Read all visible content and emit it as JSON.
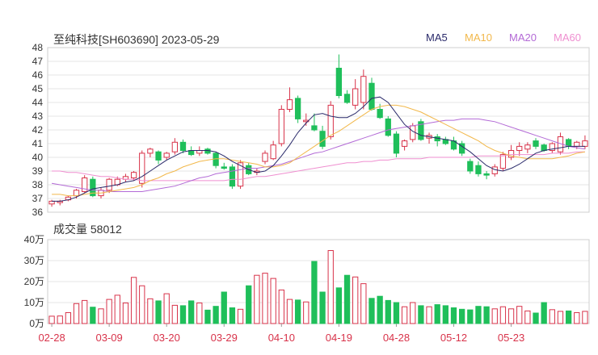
{
  "header": {
    "title": "至纯科技[SH603690] 2023-05-29"
  },
  "legend": [
    {
      "label": "MA5",
      "color": "#2b2b6b"
    },
    {
      "label": "MA10",
      "color": "#f2b84b"
    },
    {
      "label": "MA20",
      "color": "#b36ad6"
    },
    {
      "label": "MA60",
      "color": "#ef8fd0"
    }
  ],
  "volume_panel": {
    "title": "成交量",
    "value": "58012"
  },
  "colors": {
    "up": "#d8334a",
    "down": "#1fbf5a",
    "grid": "#e6e6e6",
    "axis": "#333333",
    "date": "#d8334a"
  },
  "chart_data": [
    {
      "type": "candlestick",
      "title": "至纯科技[SH603690] 2023-05-29",
      "ylim": [
        36,
        48
      ],
      "yticks": [
        "36",
        "37",
        "38",
        "39",
        "40",
        "41",
        "42",
        "43",
        "44",
        "45",
        "46",
        "47",
        "48"
      ],
      "dates": [
        "02-28",
        "03-09",
        "03-20",
        "03-29",
        "04-10",
        "04-19",
        "04-28",
        "05-12",
        "05-23"
      ],
      "date_index": [
        0,
        7,
        14,
        21,
        28,
        35,
        42,
        49,
        56
      ],
      "ohlc": [
        [
          36.6,
          36.9,
          36.4,
          36.8
        ],
        [
          36.7,
          36.9,
          36.5,
          36.8
        ],
        [
          36.9,
          37.2,
          36.8,
          37.1
        ],
        [
          37.2,
          37.7,
          37.0,
          37.6
        ],
        [
          37.5,
          38.7,
          37.4,
          38.5
        ],
        [
          38.4,
          38.6,
          37.1,
          37.2
        ],
        [
          37.2,
          37.8,
          37.0,
          37.6
        ],
        [
          37.6,
          38.5,
          37.4,
          38.4
        ],
        [
          38.0,
          38.6,
          37.9,
          38.4
        ],
        [
          38.4,
          38.8,
          38.2,
          38.6
        ],
        [
          38.5,
          39.0,
          38.3,
          38.9
        ],
        [
          38.1,
          40.5,
          37.8,
          40.3
        ],
        [
          40.3,
          40.7,
          40.0,
          40.6
        ],
        [
          40.4,
          40.5,
          39.5,
          39.8
        ],
        [
          40.0,
          40.4,
          39.8,
          40.3
        ],
        [
          40.4,
          41.4,
          40.2,
          41.1
        ],
        [
          41.1,
          41.3,
          40.3,
          40.5
        ],
        [
          40.5,
          40.8,
          40.1,
          40.2
        ],
        [
          40.3,
          40.8,
          40.1,
          40.5
        ],
        [
          40.6,
          40.7,
          40.2,
          40.3
        ],
        [
          40.3,
          40.4,
          39.2,
          39.4
        ],
        [
          39.3,
          39.6,
          39.1,
          39.2
        ],
        [
          39.3,
          39.5,
          37.7,
          37.9
        ],
        [
          37.9,
          39.8,
          37.7,
          39.6
        ],
        [
          39.4,
          39.6,
          38.7,
          38.8
        ],
        [
          38.9,
          39.2,
          38.7,
          39.0
        ],
        [
          39.7,
          40.5,
          39.5,
          40.3
        ],
        [
          39.9,
          41.2,
          39.8,
          40.9
        ],
        [
          41.0,
          43.8,
          40.8,
          43.5
        ],
        [
          43.5,
          45.1,
          43.3,
          44.2
        ],
        [
          44.3,
          44.5,
          42.5,
          42.8
        ],
        [
          42.6,
          43.2,
          42.3,
          42.7
        ],
        [
          42.3,
          43.2,
          41.9,
          42.0
        ],
        [
          41.9,
          42.3,
          40.6,
          40.8
        ],
        [
          41.5,
          44.1,
          41.3,
          43.8
        ],
        [
          46.5,
          47.5,
          44.3,
          44.5
        ],
        [
          44.6,
          44.9,
          43.9,
          44.0
        ],
        [
          43.8,
          45.7,
          43.5,
          45.0
        ],
        [
          44.0,
          46.4,
          43.5,
          45.9
        ],
        [
          45.4,
          45.8,
          43.4,
          43.5
        ],
        [
          43.5,
          43.9,
          42.8,
          42.9
        ],
        [
          42.8,
          43.0,
          41.5,
          41.6
        ],
        [
          41.7,
          41.9,
          40.0,
          40.3
        ],
        [
          40.8,
          41.3,
          40.5,
          41.2
        ],
        [
          41.3,
          42.5,
          41.1,
          42.3
        ],
        [
          42.6,
          42.8,
          41.2,
          41.3
        ],
        [
          41.4,
          41.8,
          41.0,
          41.6
        ],
        [
          41.5,
          41.7,
          40.8,
          41.2
        ],
        [
          41.3,
          41.5,
          40.9,
          41.0
        ],
        [
          41.2,
          41.5,
          40.5,
          40.6
        ],
        [
          41.0,
          41.2,
          40.1,
          40.3
        ],
        [
          39.7,
          39.9,
          38.8,
          39.0
        ],
        [
          39.4,
          39.7,
          38.6,
          38.8
        ],
        [
          38.8,
          39.0,
          38.4,
          38.7
        ],
        [
          38.8,
          39.5,
          38.6,
          39.3
        ],
        [
          39.2,
          40.4,
          39.0,
          40.2
        ],
        [
          40.0,
          40.9,
          39.8,
          40.5
        ],
        [
          40.5,
          41.1,
          40.1,
          40.8
        ],
        [
          40.6,
          41.1,
          40.3,
          40.9
        ],
        [
          41.2,
          41.4,
          40.6,
          40.8
        ],
        [
          40.9,
          41.0,
          40.4,
          40.5
        ],
        [
          40.5,
          41.1,
          40.3,
          41.0
        ],
        [
          40.4,
          41.8,
          40.2,
          41.5
        ],
        [
          41.3,
          41.4,
          40.6,
          40.8
        ],
        [
          40.8,
          41.2,
          40.6,
          41.1
        ],
        [
          40.8,
          41.6,
          40.6,
          41.2
        ]
      ],
      "ma5": [
        36.8,
        36.8,
        36.9,
        37.1,
        37.4,
        37.7,
        37.8,
        37.9,
        38.0,
        38.2,
        38.3,
        38.6,
        39.0,
        39.4,
        39.8,
        40.1,
        40.4,
        40.5,
        40.5,
        40.5,
        40.4,
        40.1,
        39.7,
        39.4,
        39.1,
        38.9,
        39.0,
        39.4,
        40.1,
        40.9,
        41.8,
        42.5,
        43.1,
        43.2,
        43.0,
        42.9,
        42.9,
        43.2,
        43.7,
        44.3,
        44.4,
        44.0,
        43.2,
        42.4,
        41.9,
        41.6,
        41.5,
        41.4,
        41.3,
        41.2,
        40.8,
        40.4,
        39.9,
        39.4,
        39.1,
        39.0,
        39.2,
        39.5,
        39.9,
        40.3,
        40.5,
        40.6,
        40.7,
        40.8,
        40.8,
        40.8
      ],
      "ma10": [
        37.3,
        37.3,
        37.2,
        37.2,
        37.3,
        37.4,
        37.4,
        37.5,
        37.6,
        37.7,
        37.8,
        38.0,
        38.3,
        38.5,
        38.8,
        39.0,
        39.3,
        39.5,
        39.7,
        39.8,
        39.9,
        39.9,
        39.8,
        39.7,
        39.6,
        39.5,
        39.3,
        39.3,
        39.4,
        39.6,
        40.0,
        40.4,
        40.8,
        41.2,
        41.6,
        41.9,
        42.3,
        42.7,
        43.1,
        43.5,
        43.7,
        43.8,
        43.8,
        43.7,
        43.5,
        43.3,
        43.0,
        42.7,
        42.4,
        42.1,
        41.8,
        41.5,
        41.2,
        40.8,
        40.5,
        40.3,
        40.1,
        40.0,
        39.9,
        39.9,
        39.9,
        39.9,
        40.0,
        40.1,
        40.3,
        40.4
      ],
      "ma20": [
        38.1,
        38.0,
        37.9,
        37.8,
        37.7,
        37.6,
        37.6,
        37.5,
        37.5,
        37.5,
        37.5,
        37.5,
        37.6,
        37.7,
        37.8,
        37.9,
        38.1,
        38.3,
        38.5,
        38.6,
        38.8,
        38.9,
        39.0,
        39.1,
        39.2,
        39.2,
        39.3,
        39.4,
        39.5,
        39.7,
        39.9,
        40.1,
        40.3,
        40.4,
        40.6,
        40.8,
        41.0,
        41.2,
        41.4,
        41.6,
        41.8,
        42.0,
        42.1,
        42.2,
        42.3,
        42.4,
        42.5,
        42.6,
        42.7,
        42.7,
        42.8,
        42.8,
        42.8,
        42.7,
        42.6,
        42.4,
        42.2,
        42.0,
        41.8,
        41.6,
        41.4,
        41.2,
        41.0,
        40.8,
        40.7,
        40.6
      ],
      "ma60": [
        39.0,
        39.0,
        38.9,
        38.9,
        38.8,
        38.7,
        38.6,
        38.6,
        38.5,
        38.4,
        38.4,
        38.3,
        38.3,
        38.3,
        38.3,
        38.3,
        38.3,
        38.3,
        38.3,
        38.3,
        38.3,
        38.3,
        38.4,
        38.4,
        38.5,
        38.6,
        38.6,
        38.7,
        38.8,
        38.9,
        39.0,
        39.1,
        39.2,
        39.3,
        39.4,
        39.5,
        39.6,
        39.6,
        39.7,
        39.7,
        39.8,
        39.8,
        39.9,
        39.9,
        39.9,
        39.9,
        40.0,
        40.0,
        40.0,
        40.0,
        40.0,
        40.0,
        40.1,
        40.1,
        40.1,
        40.1,
        40.2,
        40.2,
        40.2,
        40.2,
        40.2,
        40.3,
        40.3,
        40.3,
        40.4,
        40.4
      ]
    },
    {
      "type": "bar",
      "title": "成交量 58012",
      "ylim": [
        0,
        40
      ],
      "yticks": [
        "0万",
        "10万",
        "20万",
        "30万",
        "40万"
      ],
      "values": [
        3.5,
        3.6,
        5.2,
        9.5,
        11.0,
        7.8,
        7.0,
        11.5,
        13.5,
        9.8,
        22.0,
        18.0,
        11.8,
        10.8,
        14.2,
        8.7,
        8.5,
        10.8,
        9.8,
        6.4,
        8.2,
        15.0,
        7.5,
        6.8,
        18.0,
        23.0,
        24.0,
        21.5,
        16.0,
        11.5,
        11.2,
        10.3,
        29.6,
        15.0,
        34.8,
        17.0,
        23.0,
        22.2,
        19.0,
        12.0,
        13.0,
        11.0,
        10.0,
        8.0,
        10.0,
        8.5,
        8.0,
        9.0,
        8.5,
        7.5,
        6.8,
        6.5,
        8.2,
        8.0,
        7.0,
        8.0,
        7.0,
        8.2,
        6.0,
        5.0,
        10.0,
        6.6,
        5.8,
        6.0,
        5.2,
        5.8
      ]
    }
  ]
}
